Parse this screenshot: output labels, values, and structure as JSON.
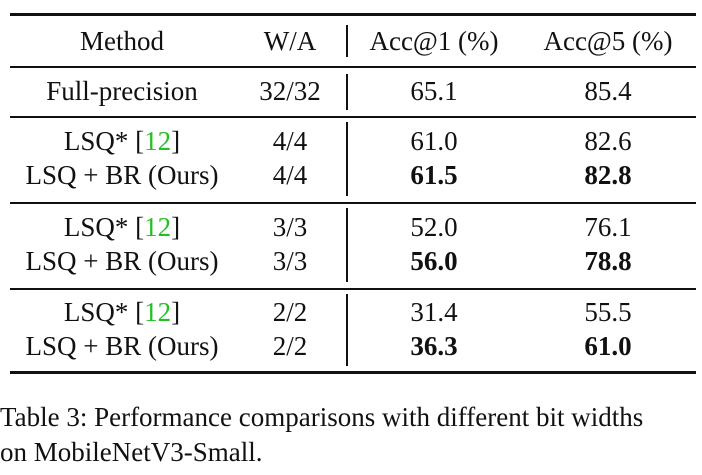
{
  "table": {
    "headers": {
      "method": "Method",
      "wa": "W/A",
      "acc1": "Acc@1 (%)",
      "acc5": "Acc@5 (%)"
    },
    "full_precision": {
      "method": "Full-precision",
      "wa": "32/32",
      "acc1": "65.1",
      "acc5": "85.4"
    },
    "groups": [
      {
        "baseline": {
          "method": "LSQ* [",
          "ref": "12",
          "close": "]",
          "wa": "4/4",
          "acc1": "61.0",
          "acc5": "82.6"
        },
        "ours": {
          "method": "LSQ + BR (Ours)",
          "wa": "4/4",
          "acc1": "61.5",
          "acc5": "82.8"
        }
      },
      {
        "baseline": {
          "method": "LSQ* [",
          "ref": "12",
          "close": "]",
          "wa": "3/3",
          "acc1": "52.0",
          "acc5": "76.1"
        },
        "ours": {
          "method": "LSQ + BR (Ours)",
          "wa": "3/3",
          "acc1": "56.0",
          "acc5": "78.8"
        }
      },
      {
        "baseline": {
          "method": "LSQ* [",
          "ref": "12",
          "close": "]",
          "wa": "2/2",
          "acc1": "31.4",
          "acc5": "55.5"
        },
        "ours": {
          "method": "LSQ + BR (Ours)",
          "wa": "2/2",
          "acc1": "36.3",
          "acc5": "61.0"
        }
      }
    ]
  },
  "caption": {
    "line1": "Table 3: Performance comparisons with different bit widths",
    "line2": "on MobileNetV3-Small."
  },
  "colors": {
    "citation": "#22c022",
    "text": "#111111"
  }
}
